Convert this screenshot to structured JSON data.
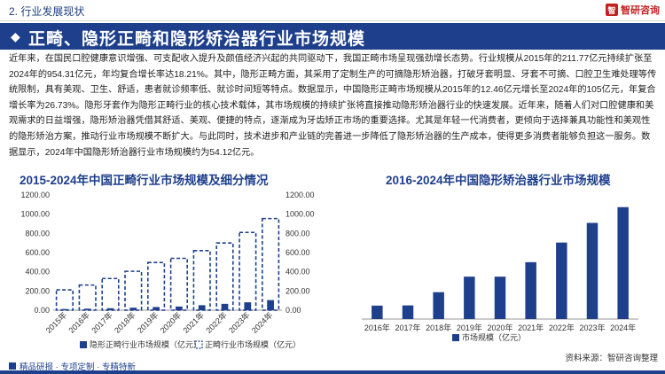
{
  "header": {
    "section_label": "2. 行业发展现状",
    "logo_text": "智研咨询",
    "logo_mark": "智"
  },
  "title_bar": {
    "icon": "title-marker-icon",
    "title": "正畸、隐形正畸和隐形矫治器行业市场规模"
  },
  "body": {
    "paragraph": "近年来，在国民口腔健康意识增强、可支配收入提升及颜值经济兴起的共同驱动下，我国正畸市场呈现强劲增长态势。行业规模从2015年的211.77亿元持续扩张至2024年的954.31亿元，年均复合增长率达18.21%。其中，隐形正畸方面，其采用了定制生产的可摘隐形矫治器，打破牙套明显、牙套不可摘、口腔卫生难处理等传统限制，具有美观、卫生、舒适，患者就诊频率低、就诊时间短等特点。数据显示，中国隐形正畸市场规模从2015年的12.46亿元增长至2024年的105亿元，年复合增长率为26.73%。隐形牙套作为隐形正畸行业的核心技术载体，其市场规模的持续扩张将直接推动隐形矫治器行业的快速发展。近年来，随着人们对口腔健康和美观需求的日益增强，隐形矫治器凭借其舒适、美观、便捷的特点，逐渐成为牙齿矫正市场的重要选择。尤其是年轻一代消费者，更倾向于选择兼具功能性和美观性的隐形矫治方案，推动行业市场规模不断扩大。与此同时，技术进步和产业链的完善进一步降低了隐形矫治器的生产成本，使得更多消费者能够负担这一服务。数据显示，2024年中国隐形矫治器行业市场规模约为54.12亿元。"
  },
  "colors": {
    "brand": "#1e3f8c",
    "bar_light": "#5b7fc2",
    "logo_red": "#c42020"
  },
  "chart_data": [
    {
      "type": "bar",
      "title": "2015-2024年中国正畸行业市场规模及细分情况",
      "categories": [
        "2015年",
        "2016年",
        "2017年",
        "2018年",
        "2019年",
        "2020年",
        "2021年",
        "2022年",
        "2023年",
        "2024年"
      ],
      "series": [
        {
          "name": "隐形正畸行业市场规模（亿元）",
          "axis": "left",
          "values": [
            12.46,
            15.8,
            20.5,
            26,
            33,
            38,
            52,
            66,
            82,
            105
          ]
        },
        {
          "name": "正畸行业市场规模（亿元）",
          "axis": "right",
          "style": "dashed-outline",
          "values": [
            211.77,
            262,
            330,
            405,
            497,
            540,
            620,
            700,
            810,
            954.31
          ]
        }
      ],
      "y_left": {
        "ticks": [
          "0.00",
          "200.00",
          "400.00",
          "600.00",
          "800.00",
          "1000.00",
          "1200.00"
        ],
        "ylim": [
          0,
          1200
        ]
      },
      "y_right": {
        "ticks": [
          "0.00",
          "200.00",
          "400.00",
          "600.00",
          "800.00",
          "1000.00",
          "1200.00"
        ],
        "ylim": [
          0,
          1200
        ]
      },
      "legend_position": "bottom"
    },
    {
      "type": "bar",
      "title": "2016-2024年中国隐形矫治器行业市场规模",
      "categories": [
        "2016年",
        "2017年",
        "2018年",
        "2019年",
        "2020年",
        "2021年",
        "2022年",
        "2023年",
        "2024年"
      ],
      "series": [
        {
          "name": "市场规模（亿元）",
          "values": [
            6.5,
            6.6,
            13,
            20.5,
            20.5,
            27.5,
            37,
            46.5,
            54.12
          ]
        }
      ],
      "ylim": [
        0,
        60
      ],
      "legend_position": "bottom"
    }
  ],
  "footer": {
    "tags": "精品研报 · 专项定制 · 专精特新",
    "source": "资料来源：智研咨询整理"
  }
}
